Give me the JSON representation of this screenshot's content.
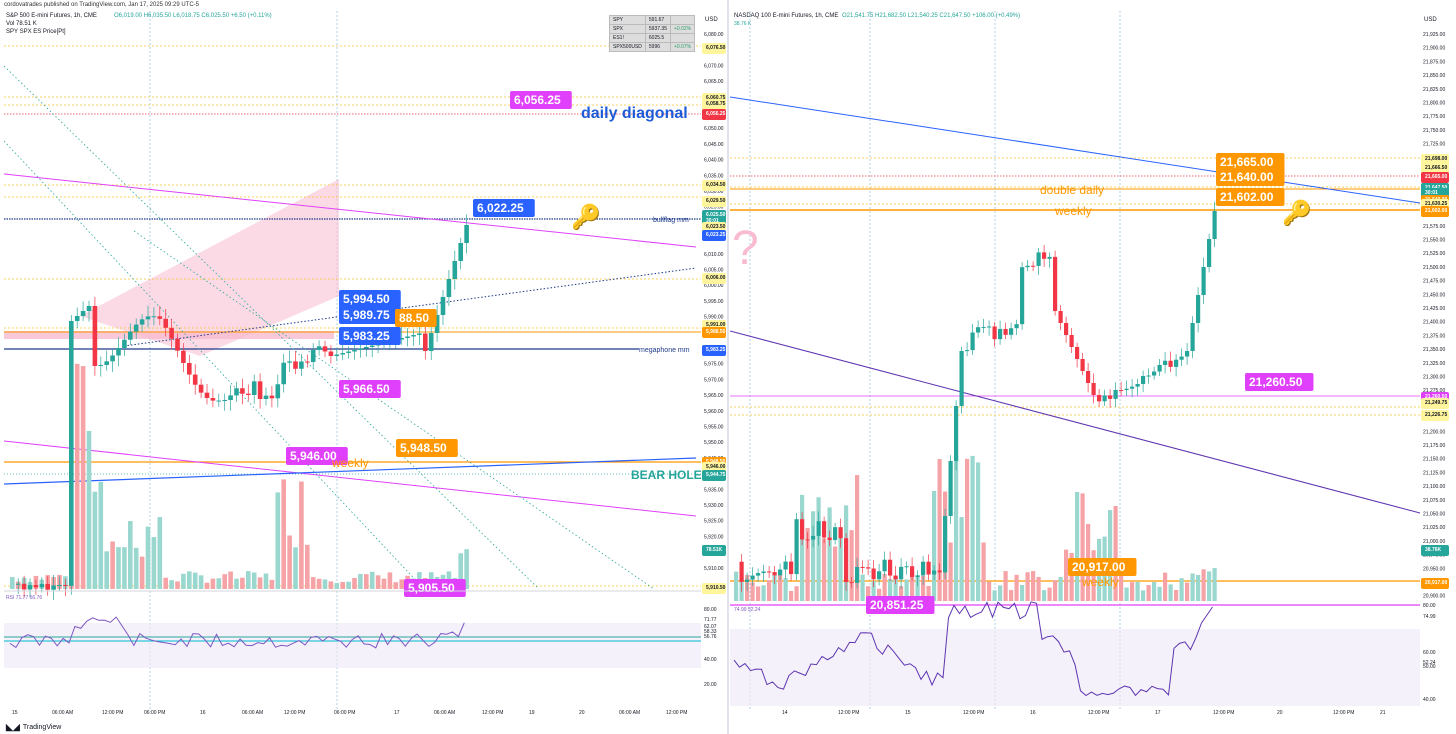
{
  "header": "cordovatrades published on TradingView.com, Jan 17, 2025 09:29 UTC-5",
  "footer": "TradingView",
  "left": {
    "title": "S&P 500 E-mini Futures, 1h, CME",
    "ohlc": "O6,019.00 H6,035.50 L6,018.75 C6,025.50 +6.50 (+0.11%)",
    "vol": "Vol 78.51 K",
    "sub": "SPY SPX ES Price[Pt]",
    "table": [
      [
        "SPY",
        "591.67",
        ""
      ],
      [
        "SPX",
        "5937.35",
        "+0.02%"
      ],
      [
        "ES1!",
        "6025.5",
        ""
      ],
      [
        "SPX500USD",
        "5996",
        "+0.07%"
      ]
    ],
    "price_axis": [
      "6,080.00",
      "6,075.00",
      "6,070.00",
      "6,065.00",
      "6,060.00",
      "6,055.00",
      "6,050.00",
      "6,045.00",
      "6,040.00",
      "6,035.00",
      "6,030.00",
      "6,025.00",
      "6,020.00",
      "6,015.00",
      "6,010.00",
      "6,005.00",
      "6,000.00",
      "5,995.00",
      "5,990.00",
      "5,985.00",
      "5,980.00",
      "5,975.00",
      "5,970.00",
      "5,965.00",
      "5,960.00",
      "5,955.00",
      "5,950.00",
      "5,945.00",
      "5,940.00",
      "5,935.00",
      "5,930.00",
      "5,925.00",
      "5,920.00",
      "5,915.00",
      "5,910.00"
    ],
    "price_tags": [
      {
        "t": "6,076.50",
        "c": "#fff59d"
      },
      {
        "t": "6,060.75",
        "c": "#fff59d"
      },
      {
        "t": "6,058.75",
        "c": "#fff59d"
      },
      {
        "t": "6,056.25",
        "c": "#f23645"
      },
      {
        "t": "6,034.50",
        "c": "#fff59d"
      },
      {
        "t": "6,029.50",
        "c": "#fff59d"
      },
      {
        "t": "6,025.50",
        "c": "#26a69a"
      },
      {
        "t": "30:01",
        "c": "#26a69a"
      },
      {
        "t": "6,023.50",
        "c": "#fff59d"
      },
      {
        "t": "6,023.25",
        "c": "#2962ff"
      },
      {
        "t": "6,006.00",
        "c": "#fff59d"
      },
      {
        "t": "5,991.00",
        "c": "#fff59d"
      },
      {
        "t": "5,988.50",
        "c": "#ff9800"
      },
      {
        "t": "5,983.25",
        "c": "#2962ff"
      },
      {
        "t": "5,948.50",
        "c": "#ff9800"
      },
      {
        "t": "5,946.00",
        "c": "#fff59d"
      },
      {
        "t": "5,944.75",
        "c": "#26a69a"
      },
      {
        "t": "78.51K",
        "c": "#26a69a"
      },
      {
        "t": "5,910.50",
        "c": "#fff59d"
      }
    ],
    "labels": {
      "l6056": "6,056.25",
      "diag": "daily diagonal",
      "l6022": "6,022.25",
      "bullflag": "bullflag mm",
      "l5994": "5,994.50",
      "l5989": "5,989.75",
      "l5983": "5,983.25",
      "l5988": "88.50",
      "megaphone": "megaphone mm",
      "l5966": "5,966.50",
      "l5946": "5,946.00",
      "weekly": "weekly",
      "l5948": "5,948.50",
      "bear": "BEAR HOLE",
      "l5905": "5,905.50"
    },
    "rsi": {
      "legend": "RSI 71.77 56.76",
      "axis": [
        "80.00",
        "71.77",
        "62.07",
        "58.33",
        "56.76",
        "40.00",
        "20.00"
      ]
    },
    "time_axis": [
      "15",
      "06:00 AM",
      "12:00 PM",
      "06:00 PM",
      "16",
      "06:00 AM",
      "12:00 PM",
      "06:00 PM",
      "17",
      "06:00 AM",
      "12:00 PM",
      "19",
      "20",
      "06:00 AM",
      "12:00 PM"
    ],
    "currency": "USD"
  },
  "right": {
    "title": "NASDAQ 100 E-mini Futures, 1h, CME",
    "ohlc": "O21,541.75 H21,682.50 L21,540.25 C21,647.50 +106.00 (+0.49%)",
    "vol": "38.76 K",
    "price_axis": [
      "21,925.00",
      "21,900.00",
      "21,875.00",
      "21,850.00",
      "21,825.00",
      "21,800.00",
      "21,775.00",
      "21,750.00",
      "21,725.00",
      "21,700.00",
      "21,675.00",
      "21,650.00",
      "21,625.00",
      "21,600.00",
      "21,575.00",
      "21,550.00",
      "21,525.00",
      "21,500.00",
      "21,475.00",
      "21,450.00",
      "21,425.00",
      "21,400.00",
      "21,375.00",
      "21,350.00",
      "21,325.00",
      "21,300.00",
      "21,275.00",
      "21,250.00",
      "21,225.00",
      "21,200.00",
      "21,175.00",
      "21,150.00",
      "21,125.00",
      "21,100.00",
      "21,075.00",
      "21,050.00",
      "21,025.00",
      "21,000.00",
      "20,975.00",
      "20,950.00",
      "20,925.00",
      "20,900.00"
    ],
    "price_tags": [
      {
        "t": "21,698.00",
        "c": "#fff59d"
      },
      {
        "t": "21,666.50",
        "c": "#fff59d"
      },
      {
        "t": "21,665.00",
        "c": "#f23645"
      },
      {
        "t": "21,647.50",
        "c": "#26a69a"
      },
      {
        "t": "30:01",
        "c": "#26a69a"
      },
      {
        "t": "21,640.00",
        "c": "#ff9800"
      },
      {
        "t": "21,630.25",
        "c": "#fff59d"
      },
      {
        "t": "21,602.00",
        "c": "#ff9800"
      },
      {
        "t": "21,260.50",
        "c": "#e040fb"
      },
      {
        "t": "21,249.75",
        "c": "#fff59d"
      },
      {
        "t": "21,226.75",
        "c": "#fff59d"
      },
      {
        "t": "38.76K",
        "c": "#26a69a"
      },
      {
        "t": "20,917.00",
        "c": "#ff9800"
      }
    ],
    "labels": {
      "l21665": "21,665.00",
      "l21640": "21,640.00",
      "l21602": "21,602.00",
      "dd": "double daily",
      "weekly": "weekly",
      "l21260": "21,260.50",
      "l20917": "20,917.00",
      "weekly2": "weekly",
      "l20851": "20,851.25"
    },
    "rsi": {
      "legend": "74.99 52.24",
      "axis": [
        "80.00",
        "74.99",
        "60.00",
        "52.24",
        "50.00",
        "40.00"
      ]
    },
    "time_axis": [
      "14",
      "12:00 PM",
      "15",
      "12:00 PM",
      "16",
      "12:00 PM",
      "17",
      "12:00 PM",
      "20",
      "12:00 PM",
      "21"
    ],
    "currency": "USD"
  },
  "colors": {
    "up": "#26a69a",
    "down": "#f23645",
    "vol_up": "#9ad7cf",
    "vol_down": "#f5a3a6",
    "magenta": "#e040fb",
    "blue": "#2962ff",
    "orange": "#ff9800",
    "navy": "#1e3a8a",
    "purple": "#5e35b1"
  }
}
